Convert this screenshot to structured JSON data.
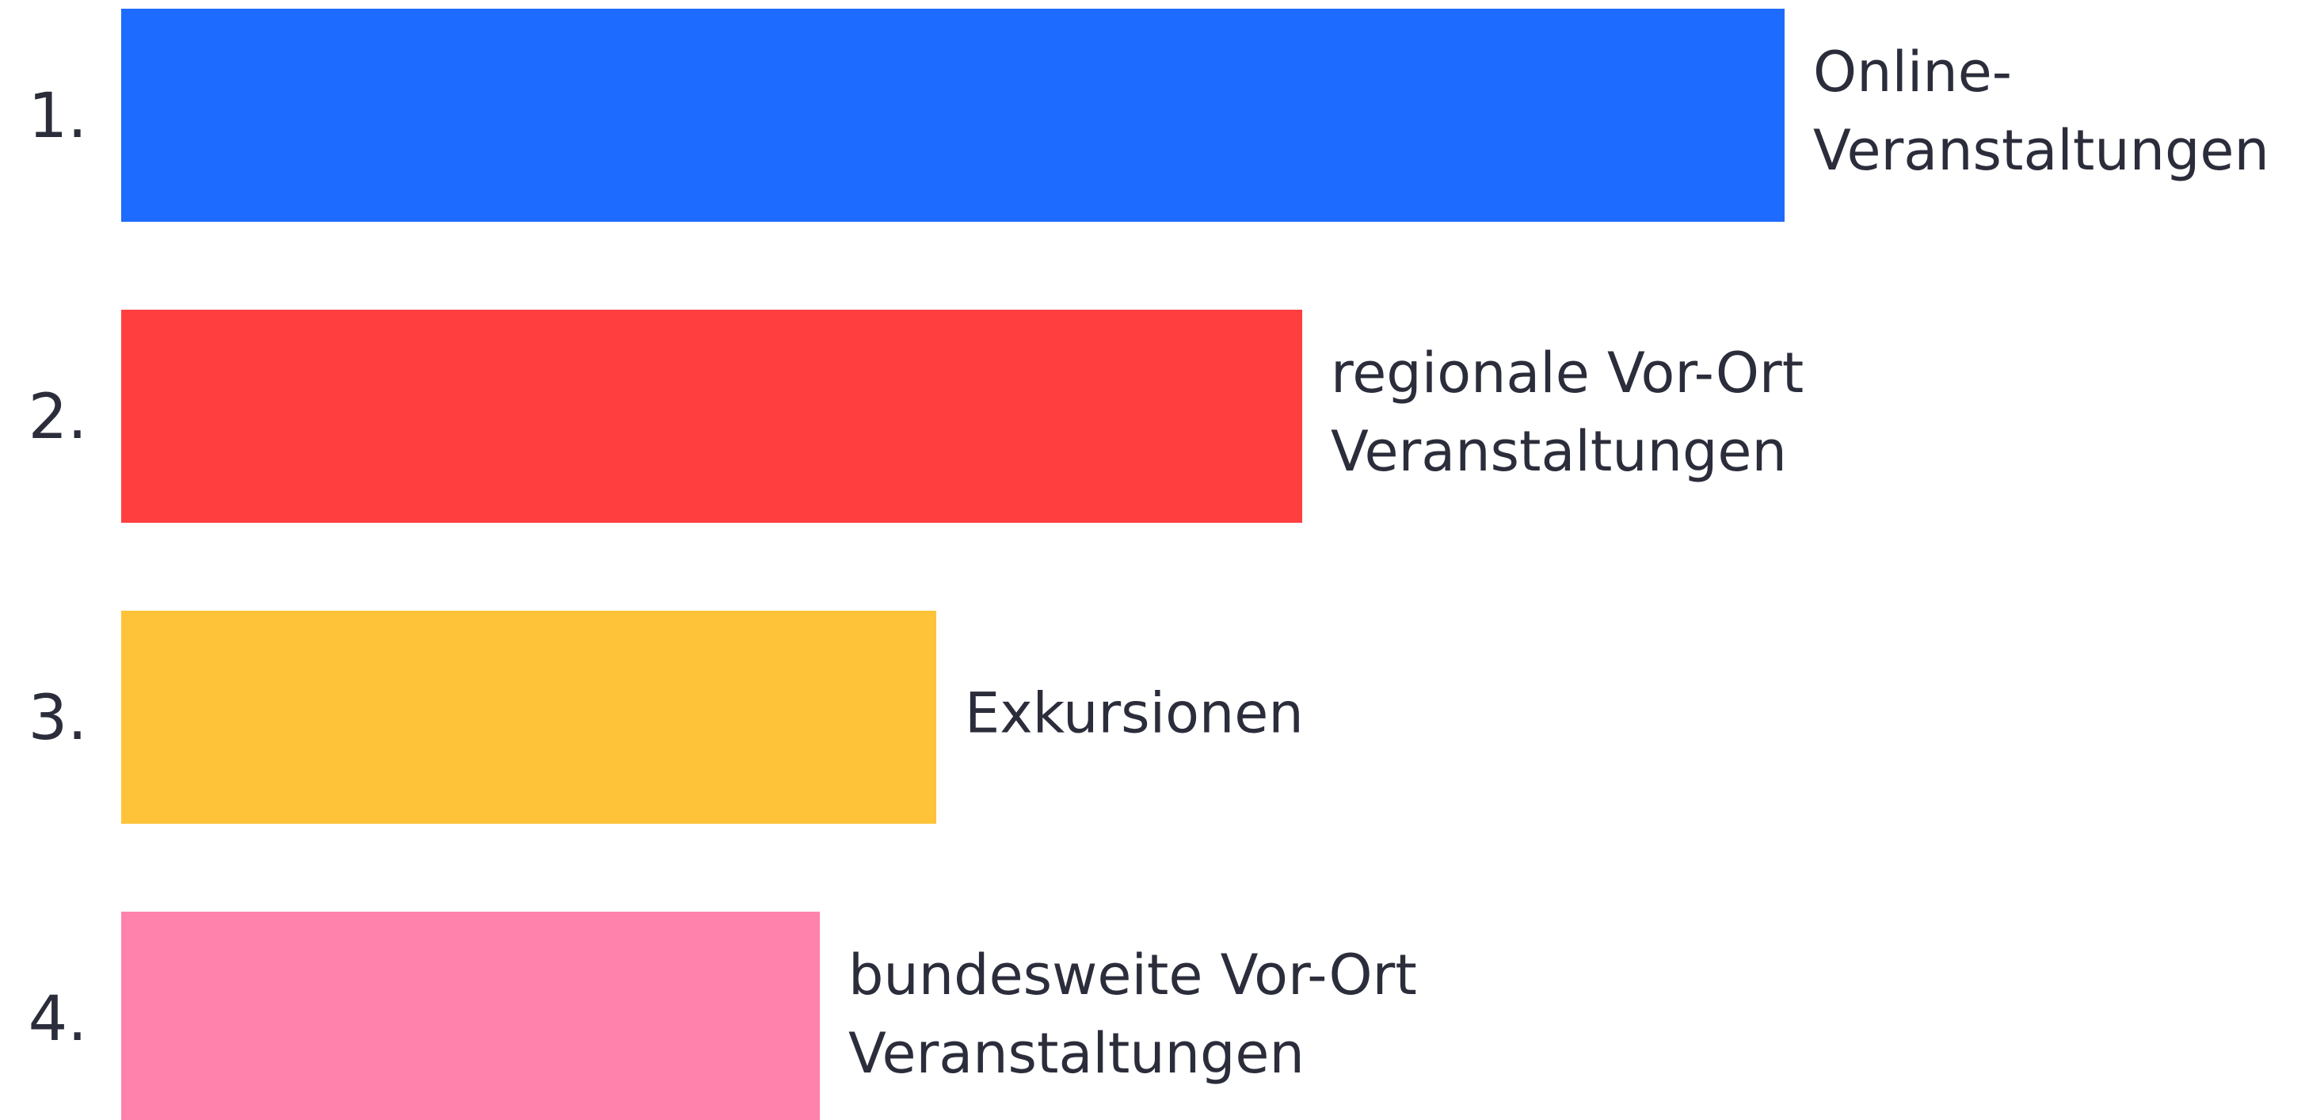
{
  "chart_data": {
    "type": "bar",
    "orientation": "horizontal",
    "ranks": [
      "1.",
      "2.",
      "3.",
      "4."
    ],
    "categories": [
      [
        "Online-",
        "Veranstaltungen"
      ],
      [
        "regionale Vor-Ort",
        "Veranstaltungen"
      ],
      [
        "Exkursionen"
      ],
      [
        "bundesweite Vor-Ort",
        "Veranstaltungen"
      ]
    ],
    "values": [
      100,
      71,
      49,
      42
    ],
    "colors": [
      "#1e6bff",
      "#ff3f3f",
      "#ffc33a",
      "#ff82ad"
    ],
    "xlim": [
      0,
      100
    ]
  }
}
